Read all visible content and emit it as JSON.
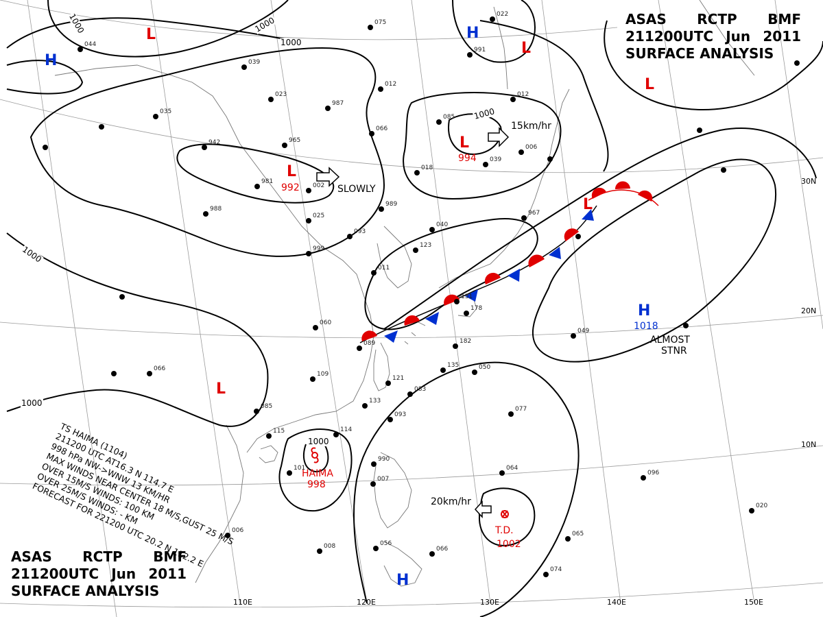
{
  "header": {
    "agency": "ASAS",
    "station": "RCTP",
    "office": "BMF",
    "time": "211200UTC",
    "month": "Jun",
    "year": "2011",
    "title": "SURFACE ANALYSIS"
  },
  "systems": {
    "L1": "L",
    "L2": "L",
    "L3": "L",
    "L4": "L",
    "L5": "L",
    "L6": "L",
    "L7": "L",
    "H1": "H",
    "H2": "H",
    "H3": "H",
    "H4": "H",
    "low_992": "992",
    "low_994": "994",
    "high_1018": "1018",
    "haima_name": "HAIMA",
    "haima_pressure": "998",
    "td_name": "T.D.",
    "td_pressure": "1002"
  },
  "motion": {
    "slowly": "SLOWLY",
    "speed_15": "15km/hr",
    "speed_20": "20km/hr",
    "almost": "ALMOST",
    "stnr": "STNR"
  },
  "isobars": {
    "v1": "1000",
    "v2": "1000",
    "v3": "1000",
    "v4": "1000",
    "v5": "1000",
    "v6": "1000",
    "v7": "1000"
  },
  "graticule": {
    "lon_110": "110E",
    "lon_120": "120E",
    "lon_130": "130E",
    "lon_140": "140E",
    "lon_150": "150E",
    "lat_30": "30N",
    "lat_20": "20N",
    "lat_10": "10N"
  },
  "storm_info": {
    "line1": "TS  HAIMA  (1104)",
    "line2": "211200 UTC  AT16.3 N  114.7 E",
    "line3": "998 hPa  NW->WNW  13 KM/HR",
    "line4": "MAX WINDS NEAR CENTER 18 M/S,GUST 25 M/S",
    "line5": "OVER 15M/S WINDS: 100 KM",
    "line6": "OVER 25M/S WINDS: - KM",
    "line7": "FORECAST FOR 221200 UTC 20.2 N  112.2 E"
  },
  "colors": {
    "low": "#e00000",
    "high": "#0030d0",
    "warm_front": "#e00000",
    "cold_front": "#0030d0",
    "isobar": "#000000",
    "coast": "#777777"
  },
  "observations": [
    "075",
    "022",
    "044",
    "039",
    "023",
    "012",
    "987",
    "035",
    "942",
    "965",
    "981",
    "002",
    "988",
    "025",
    "999",
    "093",
    "066",
    "018",
    "085",
    "012",
    "006",
    "039",
    "991",
    "967",
    "989",
    "040",
    "123",
    "011",
    "060",
    "089",
    "131",
    "178",
    "182",
    "050",
    "135",
    "121",
    "133",
    "083",
    "093",
    "109",
    "066",
    "085",
    "115",
    "114",
    "101",
    "990",
    "007",
    "006",
    "008",
    "056",
    "066",
    "074",
    "064",
    "065",
    "077",
    "096",
    "020",
    "049"
  ]
}
